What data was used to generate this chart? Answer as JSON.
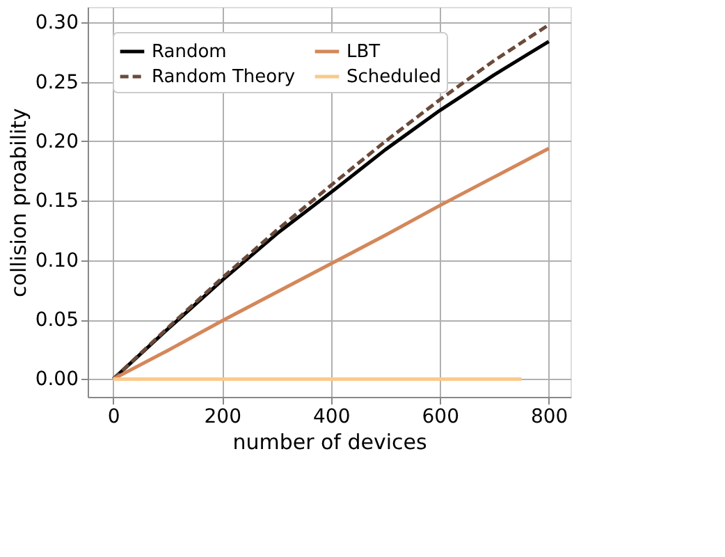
{
  "chart_data": {
    "type": "line",
    "xlabel": "number of devices",
    "ylabel": "collision proability",
    "xlim": [
      -47,
      840
    ],
    "ylim": [
      -0.015,
      0.313
    ],
    "xticks": [
      0,
      200,
      400,
      600,
      800
    ],
    "yticks": [
      {
        "value": 0,
        "label": "0.00"
      },
      {
        "value": 0.05,
        "label": "0.05"
      },
      {
        "value": 0.1,
        "label": "0.10"
      },
      {
        "value": 0.15,
        "label": "0.15"
      },
      {
        "value": 0.2,
        "label": "0.20"
      },
      {
        "value": 0.25,
        "label": "0.25"
      },
      {
        "value": 0.3,
        "label": "0.30"
      }
    ],
    "grid": true,
    "legend": "top left",
    "marker": "none",
    "series": [
      {
        "name": "Random",
        "color": "#000000",
        "line_style": "solid",
        "x": [
          0,
          100,
          200,
          300,
          400,
          500,
          600,
          700,
          800
        ],
        "values": [
          0,
          0.042,
          0.083,
          0.122,
          0.157,
          0.193,
          0.226,
          0.256,
          0.284
        ]
      },
      {
        "name": "Random Theory",
        "color": "#6b4a3a",
        "line_style": "dashed",
        "x": [
          0,
          100,
          200,
          300,
          400,
          500,
          600,
          700,
          800
        ],
        "values": [
          0,
          0.043,
          0.085,
          0.125,
          0.163,
          0.2,
          0.235,
          0.268,
          0.298
        ]
      },
      {
        "name": "LBT",
        "color": "#d4875a",
        "line_style": "solid",
        "x": [
          0,
          100,
          200,
          300,
          400,
          500,
          600,
          700,
          800
        ],
        "values": [
          0,
          0.024,
          0.049,
          0.073,
          0.097,
          0.121,
          0.146,
          0.17,
          0.194
        ]
      },
      {
        "name": "Scheduled",
        "color": "#fbc98a",
        "line_style": "solid",
        "x": [
          0,
          750
        ],
        "values": [
          0,
          0
        ]
      }
    ]
  }
}
